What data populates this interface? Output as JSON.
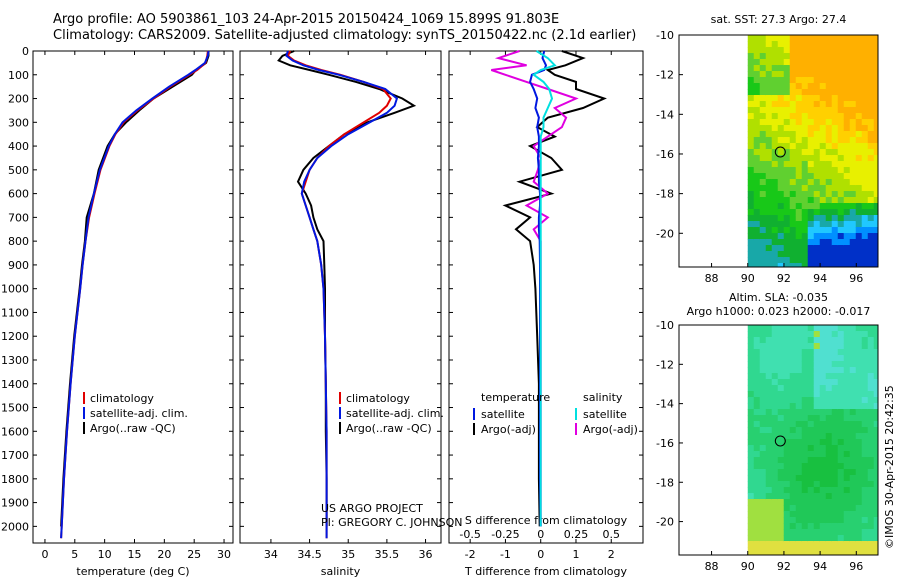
{
  "header": {
    "line1": "Argo profile: AO 5903861_103 24-Apr-2015 20150424_1069 15.899S 91.803E",
    "line2": "Climatology: CARS2009. Satellite-adjusted climatology: synTS_20150422.nc (2.1d earlier)"
  },
  "credit": {
    "line1": "US ARGO PROJECT",
    "line2": "PI: GREGORY C. JOHNSON"
  },
  "watermark": "©IMOS 30-Apr-2015 20:42:35",
  "colors": {
    "climatology": "#e00000",
    "satellite": "#0018e0",
    "argo": "#000000",
    "sal_satellite": "#00e0e0",
    "sal_argo": "#e000e0"
  },
  "depth_axis": {
    "ylim": [
      0,
      2070
    ],
    "ticks": [
      0,
      100,
      200,
      300,
      400,
      500,
      600,
      700,
      800,
      900,
      1000,
      1100,
      1200,
      1300,
      1400,
      1500,
      1600,
      1700,
      1800,
      1900,
      2000
    ]
  },
  "chart_data": [
    {
      "type": "line",
      "id": "temperature",
      "xlabel": "temperature (deg C)",
      "xlim": [
        -2,
        31.5
      ],
      "xticks": [
        0,
        5,
        10,
        15,
        20,
        25,
        30
      ],
      "legend": [
        "climatology",
        "satellite-adj. clim.",
        "Argo(..raw -QC)"
      ],
      "depth": [
        0,
        20,
        50,
        80,
        100,
        150,
        200,
        250,
        300,
        350,
        400,
        500,
        600,
        700,
        800,
        900,
        1000,
        1200,
        1400,
        1600,
        1800,
        2000,
        2050
      ],
      "series": [
        {
          "name": "climatology",
          "values": [
            27.3,
            27.2,
            26.9,
            25.5,
            24.2,
            21.0,
            18.2,
            15.5,
            13.2,
            11.8,
            10.8,
            9.3,
            8.3,
            7.4,
            6.8,
            6.3,
            5.9,
            5.0,
            4.3,
            3.7,
            3.2,
            2.8,
            2.7
          ]
        },
        {
          "name": "satellite-adj. clim.",
          "values": [
            27.4,
            27.3,
            26.8,
            25.2,
            24.0,
            20.8,
            18.0,
            15.3,
            13.0,
            11.7,
            10.7,
            9.2,
            8.2,
            7.3,
            6.8,
            6.3,
            5.9,
            5.0,
            4.3,
            3.7,
            3.2,
            2.8,
            2.7
          ]
        },
        {
          "name": "Argo(..raw -QC)",
          "values": [
            27.4,
            27.4,
            27.0,
            25.3,
            24.6,
            21.4,
            18.2,
            15.8,
            13.6,
            11.7,
            10.5,
            9.0,
            8.2,
            7.0,
            6.7,
            6.2,
            5.8,
            4.9,
            4.2,
            3.6,
            3.1,
            2.7,
            null
          ]
        }
      ]
    },
    {
      "type": "line",
      "id": "salinity",
      "xlabel": "salinity",
      "xlim": [
        33.6,
        36.2
      ],
      "xticks": [
        34,
        34.5,
        35,
        35.5,
        36
      ],
      "legend": [
        "climatology",
        "satellite-adj. clim.",
        "Argo(..raw -QC)"
      ],
      "depth": [
        0,
        20,
        40,
        60,
        80,
        100,
        130,
        160,
        200,
        230,
        260,
        300,
        350,
        400,
        450,
        500,
        550,
        600,
        650,
        700,
        750,
        800,
        900,
        1000,
        1200,
        1400,
        1600,
        1800,
        2000,
        2050
      ],
      "series": [
        {
          "name": "climatology",
          "values": [
            34.25,
            34.22,
            34.3,
            34.45,
            34.65,
            34.9,
            35.2,
            35.45,
            35.55,
            35.5,
            35.4,
            35.2,
            34.95,
            34.75,
            34.6,
            34.5,
            34.45,
            34.4,
            34.45,
            34.5,
            34.55,
            34.6,
            34.65,
            34.68,
            34.7,
            34.71,
            34.72,
            34.72,
            34.72,
            34.72
          ]
        },
        {
          "name": "satellite-adj. clim.",
          "values": [
            34.22,
            34.2,
            34.28,
            34.42,
            34.62,
            34.88,
            35.2,
            35.48,
            35.63,
            35.6,
            35.5,
            35.28,
            35.0,
            34.78,
            34.6,
            34.5,
            34.43,
            34.4,
            34.45,
            34.5,
            34.55,
            34.6,
            34.65,
            34.68,
            34.7,
            34.71,
            34.72,
            34.72,
            34.72,
            34.72
          ]
        },
        {
          "name": "Argo(..raw -QC)",
          "values": [
            34.3,
            34.15,
            34.1,
            34.25,
            34.5,
            34.75,
            35.1,
            35.4,
            35.7,
            35.85,
            35.6,
            35.25,
            34.95,
            34.75,
            34.55,
            34.42,
            34.35,
            34.45,
            34.52,
            34.55,
            34.6,
            34.68,
            34.69,
            34.7,
            34.7,
            34.71,
            34.71,
            34.72,
            34.72,
            null
          ]
        }
      ]
    },
    {
      "type": "line",
      "id": "differences",
      "xlabel": "T difference from climatology",
      "xlabel2": "S difference from climatology",
      "xlim": [
        -2.6,
        2.9
      ],
      "xticks": [
        -2,
        -1,
        0,
        1,
        2
      ],
      "xticks_s": [
        -0.5,
        -0.25,
        0,
        0.25,
        0.5
      ],
      "xticks_s_labels": [
        "-0.5",
        "-0.25",
        "0",
        "0.25",
        "0.5"
      ],
      "s_scale": 4,
      "legend_temperature": {
        "title": "temperature",
        "items": [
          "satellite",
          "Argo(-adj)"
        ]
      },
      "legend_salinity": {
        "title": "salinity",
        "items": [
          "satellite",
          "Argo(-adj)"
        ]
      },
      "depth": [
        0,
        30,
        60,
        80,
        100,
        130,
        160,
        200,
        240,
        280,
        320,
        360,
        400,
        450,
        500,
        550,
        600,
        650,
        700,
        750,
        800,
        900,
        1000,
        1200,
        1400,
        1600,
        1800,
        2000
      ],
      "series": [
        {
          "name": "T satellite",
          "values": [
            0.1,
            0.05,
            0.15,
            0.1,
            -0.25,
            -0.3,
            -0.2,
            -0.1,
            -0.15,
            -0.05,
            -0.1,
            -0.05,
            -0.05,
            -0.08,
            -0.05,
            -0.05,
            -0.02,
            -0.02,
            -0.05,
            -0.05,
            -0.03,
            -0.02,
            -0.02,
            -0.02,
            -0.02,
            -0.02,
            -0.02,
            0.0
          ]
        },
        {
          "name": "T Argo(-adj)",
          "values": [
            0.6,
            1.2,
            0.7,
            0.2,
            0.4,
            1.0,
            1.0,
            1.8,
            1.2,
            0.2,
            -0.1,
            0.4,
            -0.3,
            0.3,
            0.6,
            -0.6,
            0.3,
            -1.0,
            -0.3,
            -0.7,
            -0.3,
            -0.2,
            -0.15,
            -0.1,
            -0.05,
            -0.05,
            -0.05,
            -0.03
          ]
        },
        {
          "name": "S satellite",
          "values": [
            -0.03,
            0.05,
            0.1,
            0.0,
            -0.05,
            0.02,
            0.06,
            0.08,
            0.05,
            0.02,
            0.02,
            0.0,
            0.0,
            0.0,
            0.0,
            0.0,
            0.0,
            0.0,
            0.0,
            0.0,
            0.0,
            0.0,
            0.0,
            0.0,
            0.0,
            0.0,
            0.0,
            0.0
          ]
        },
        {
          "name": "S Argo(-adj)",
          "values": [
            -0.15,
            -0.3,
            -0.1,
            -0.35,
            -0.25,
            -0.1,
            0.05,
            0.25,
            0.1,
            0.18,
            0.15,
            0.05,
            -0.05,
            0.0,
            -0.02,
            -0.05,
            0.05,
            -0.1,
            0.05,
            -0.05,
            0.0,
            0.0,
            0.0,
            0.0,
            0.0,
            0.0,
            0.0,
            0.0
          ]
        }
      ]
    },
    {
      "type": "heatmap",
      "id": "sst-map",
      "title": "sat. SST: 27.3  Argo: 27.4",
      "xlim": [
        86.2,
        97.2
      ],
      "ylim": [
        -21.7,
        -10
      ],
      "xticks": [
        88,
        90,
        92,
        94,
        96
      ],
      "yticks": [
        -10,
        -12,
        -14,
        -16,
        -18,
        -20
      ],
      "no_data_west_of": 90,
      "profile_lon": 91.8,
      "profile_lat": -15.9,
      "palette": [
        "#0030c8",
        "#0090ff",
        "#20c8ff",
        "#18a8a8",
        "#10b030",
        "#18c818",
        "#60d030",
        "#b0e000",
        "#e8f000",
        "#ffd000",
        "#ffb000"
      ]
    },
    {
      "type": "heatmap",
      "id": "sla-map",
      "title": "Altim. SLA: -0.035",
      "subtitle": "Argo h1000: 0.023 h2000: -0.017",
      "xlim": [
        86.2,
        97.2
      ],
      "ylim": [
        -21.7,
        -10
      ],
      "xticks": [
        88,
        90,
        92,
        94,
        96
      ],
      "yticks": [
        -10,
        -12,
        -14,
        -16,
        -18,
        -20
      ],
      "no_data_west_of": 90,
      "profile_lon": 91.8,
      "profile_lat": -15.9,
      "palette": [
        "#10b030",
        "#18c040",
        "#20c858",
        "#28d070",
        "#30d890",
        "#40e0b0",
        "#50e0d0",
        "#a0e040",
        "#e0e040"
      ]
    }
  ]
}
